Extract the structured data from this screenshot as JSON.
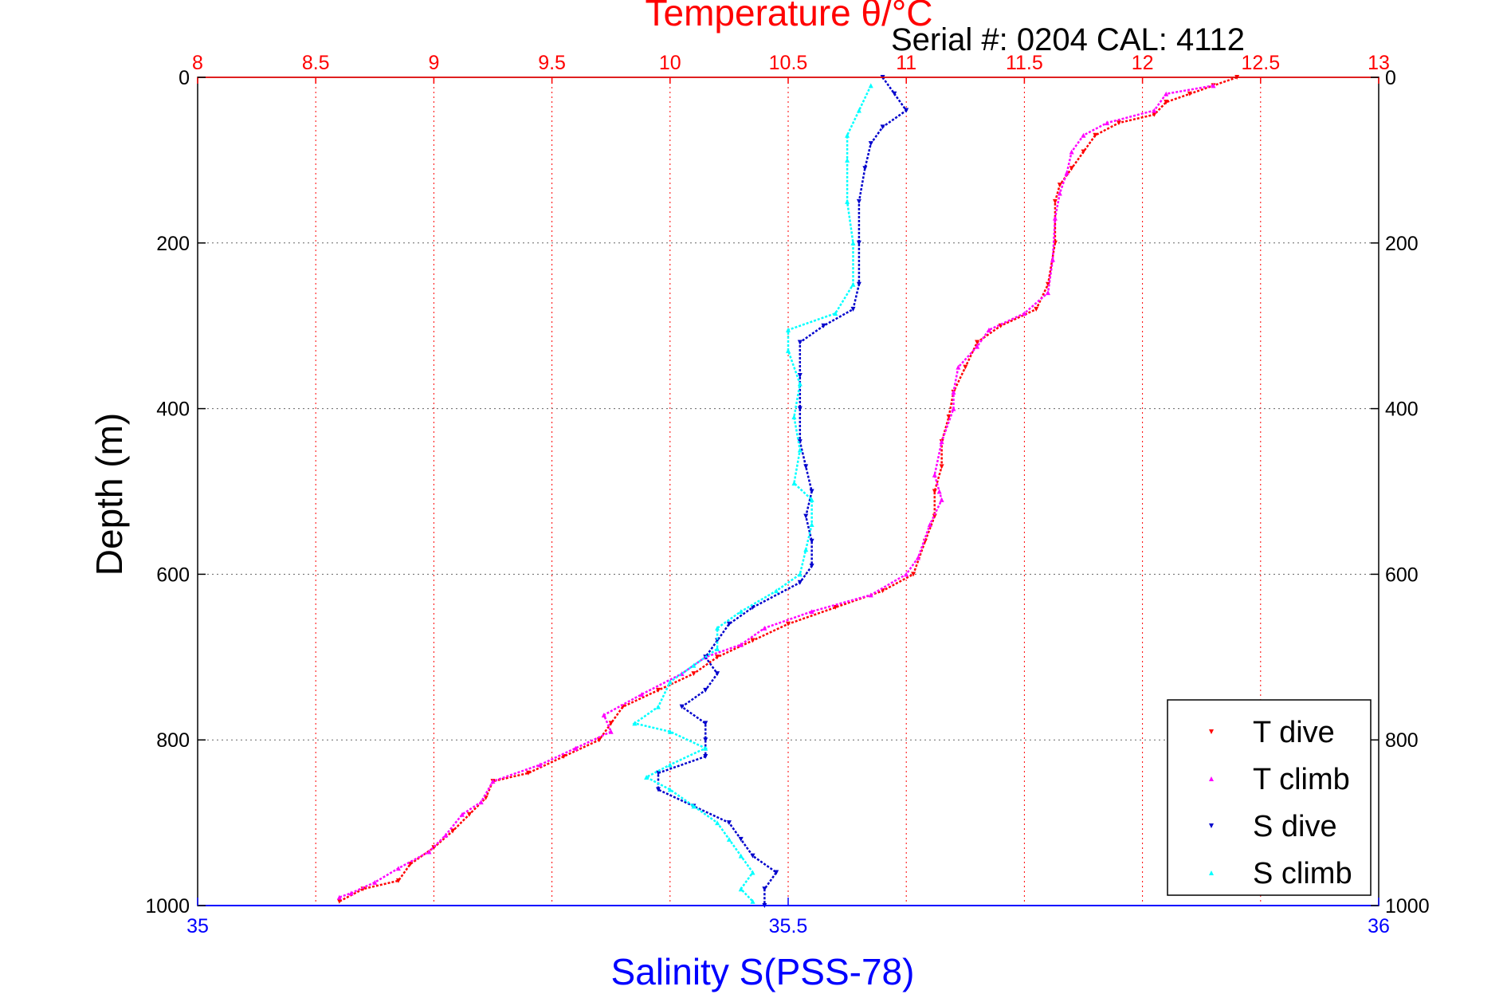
{
  "chart_data": {
    "type": "scatter",
    "title_top": "Temperature θ/°C",
    "subtitle": "Serial #: 0204  CAL: 4112",
    "ylabel": "Depth (m)",
    "xlabel_bottom": "Salinity S(PSS-78)",
    "y_axis": {
      "range": [
        0,
        1000
      ],
      "reversed": true,
      "ticks": [
        0,
        200,
        400,
        600,
        800,
        1000
      ],
      "tick_labels": [
        "0",
        "200",
        "400",
        "600",
        "800",
        "1000"
      ]
    },
    "x_top_axis": {
      "range": [
        8,
        13
      ],
      "ticks": [
        8,
        8.5,
        9,
        9.5,
        10,
        10.5,
        11,
        11.5,
        12,
        12.5,
        13
      ],
      "tick_labels": [
        "8",
        "8.5",
        "9",
        "9.5",
        "10",
        "10.5",
        "11",
        "11.5",
        "12",
        "12.5",
        "13"
      ],
      "color": "#ff0000",
      "grid": "dotted vertical"
    },
    "x_bottom_axis": {
      "range": [
        35,
        36
      ],
      "ticks": [
        35,
        35.5,
        36
      ],
      "tick_labels": [
        "35",
        "35.5",
        "36"
      ],
      "color": "#0000ff"
    },
    "horizontal_grid": "dotted",
    "legend": {
      "position": "bottom-right"
    },
    "series": [
      {
        "name": "T dive",
        "axis": "top",
        "color": "#ff0000",
        "marker": "triangle-down",
        "points": [
          [
            12.4,
            0
          ],
          [
            12.3,
            10
          ],
          [
            12.2,
            20
          ],
          [
            12.1,
            30
          ],
          [
            12.05,
            45
          ],
          [
            11.9,
            55
          ],
          [
            11.8,
            70
          ],
          [
            11.75,
            90
          ],
          [
            11.7,
            110
          ],
          [
            11.65,
            130
          ],
          [
            11.63,
            150
          ],
          [
            11.63,
            200
          ],
          [
            11.6,
            250
          ],
          [
            11.55,
            280
          ],
          [
            11.4,
            300
          ],
          [
            11.3,
            320
          ],
          [
            11.25,
            350
          ],
          [
            11.2,
            380
          ],
          [
            11.18,
            410
          ],
          [
            11.15,
            440
          ],
          [
            11.15,
            470
          ],
          [
            11.12,
            500
          ],
          [
            11.12,
            530
          ],
          [
            11.08,
            560
          ],
          [
            11.03,
            600
          ],
          [
            10.9,
            620
          ],
          [
            10.7,
            640
          ],
          [
            10.5,
            660
          ],
          [
            10.35,
            680
          ],
          [
            10.2,
            700
          ],
          [
            10.1,
            720
          ],
          [
            9.95,
            740
          ],
          [
            9.8,
            760
          ],
          [
            9.75,
            780
          ],
          [
            9.7,
            800
          ],
          [
            9.55,
            820
          ],
          [
            9.4,
            840
          ],
          [
            9.25,
            850
          ],
          [
            9.22,
            870
          ],
          [
            9.15,
            890
          ],
          [
            9.08,
            910
          ],
          [
            9,
            930
          ],
          [
            8.9,
            950
          ],
          [
            8.85,
            970
          ],
          [
            8.7,
            980
          ],
          [
            8.6,
            995
          ]
        ]
      },
      {
        "name": "T climb",
        "axis": "top",
        "color": "#ff00ff",
        "marker": "triangle-up",
        "points": [
          [
            12.3,
            10
          ],
          [
            12.1,
            20
          ],
          [
            12.05,
            40
          ],
          [
            11.85,
            55
          ],
          [
            11.75,
            70
          ],
          [
            11.7,
            90
          ],
          [
            11.68,
            115
          ],
          [
            11.65,
            140
          ],
          [
            11.63,
            170
          ],
          [
            11.62,
            220
          ],
          [
            11.6,
            260
          ],
          [
            11.5,
            285
          ],
          [
            11.35,
            305
          ],
          [
            11.3,
            325
          ],
          [
            11.22,
            350
          ],
          [
            11.2,
            380
          ],
          [
            11.2,
            400
          ],
          [
            11.15,
            440
          ],
          [
            11.12,
            480
          ],
          [
            11.14,
            500
          ],
          [
            11.15,
            510
          ],
          [
            11.1,
            540
          ],
          [
            11.05,
            580
          ],
          [
            11,
            600
          ],
          [
            10.85,
            625
          ],
          [
            10.6,
            645
          ],
          [
            10.4,
            665
          ],
          [
            10.3,
            685
          ],
          [
            10.15,
            700
          ],
          [
            10.05,
            720
          ],
          [
            9.88,
            745
          ],
          [
            9.72,
            770
          ],
          [
            9.75,
            790
          ],
          [
            9.6,
            810
          ],
          [
            9.45,
            830
          ],
          [
            9.25,
            850
          ],
          [
            9.2,
            875
          ],
          [
            9.12,
            890
          ],
          [
            9.05,
            915
          ],
          [
            8.98,
            935
          ],
          [
            8.85,
            955
          ],
          [
            8.75,
            972
          ],
          [
            8.65,
            985
          ],
          [
            8.6,
            990
          ]
        ]
      },
      {
        "name": "S dive",
        "axis": "bottom",
        "color": "#0000cc",
        "marker": "triangle-down",
        "points": [
          [
            35.58,
            0
          ],
          [
            35.59,
            20
          ],
          [
            35.6,
            40
          ],
          [
            35.58,
            60
          ],
          [
            35.57,
            80
          ],
          [
            35.565,
            110
          ],
          [
            35.56,
            150
          ],
          [
            35.56,
            200
          ],
          [
            35.56,
            250
          ],
          [
            35.555,
            280
          ],
          [
            35.53,
            300
          ],
          [
            35.51,
            320
          ],
          [
            35.51,
            360
          ],
          [
            35.51,
            400
          ],
          [
            35.51,
            440
          ],
          [
            35.515,
            470
          ],
          [
            35.52,
            500
          ],
          [
            35.515,
            530
          ],
          [
            35.52,
            560
          ],
          [
            35.52,
            590
          ],
          [
            35.51,
            610
          ],
          [
            35.47,
            640
          ],
          [
            35.45,
            660
          ],
          [
            35.44,
            680
          ],
          [
            35.43,
            700
          ],
          [
            35.44,
            720
          ],
          [
            35.43,
            740
          ],
          [
            35.41,
            760
          ],
          [
            35.43,
            780
          ],
          [
            35.43,
            800
          ],
          [
            35.43,
            820
          ],
          [
            35.39,
            840
          ],
          [
            35.39,
            860
          ],
          [
            35.42,
            880
          ],
          [
            35.45,
            900
          ],
          [
            35.46,
            920
          ],
          [
            35.47,
            940
          ],
          [
            35.49,
            960
          ],
          [
            35.48,
            980
          ],
          [
            35.48,
            1000
          ]
        ]
      },
      {
        "name": "S climb",
        "axis": "bottom",
        "color": "#00ffff",
        "marker": "triangle-up",
        "points": [
          [
            35.57,
            10
          ],
          [
            35.56,
            40
          ],
          [
            35.55,
            70
          ],
          [
            35.55,
            100
          ],
          [
            35.55,
            150
          ],
          [
            35.555,
            200
          ],
          [
            35.555,
            250
          ],
          [
            35.54,
            285
          ],
          [
            35.5,
            305
          ],
          [
            35.5,
            330
          ],
          [
            35.51,
            370
          ],
          [
            35.505,
            410
          ],
          [
            35.51,
            450
          ],
          [
            35.505,
            490
          ],
          [
            35.52,
            510
          ],
          [
            35.52,
            540
          ],
          [
            35.515,
            570
          ],
          [
            35.51,
            600
          ],
          [
            35.49,
            620
          ],
          [
            35.46,
            645
          ],
          [
            35.44,
            665
          ],
          [
            35.44,
            690
          ],
          [
            35.42,
            710
          ],
          [
            35.4,
            730
          ],
          [
            35.39,
            760
          ],
          [
            35.37,
            780
          ],
          [
            35.4,
            790
          ],
          [
            35.43,
            810
          ],
          [
            35.4,
            830
          ],
          [
            35.38,
            845
          ],
          [
            35.4,
            860
          ],
          [
            35.42,
            880
          ],
          [
            35.44,
            900
          ],
          [
            35.45,
            920
          ],
          [
            35.46,
            940
          ],
          [
            35.47,
            960
          ],
          [
            35.46,
            980
          ],
          [
            35.47,
            995
          ]
        ]
      }
    ]
  }
}
